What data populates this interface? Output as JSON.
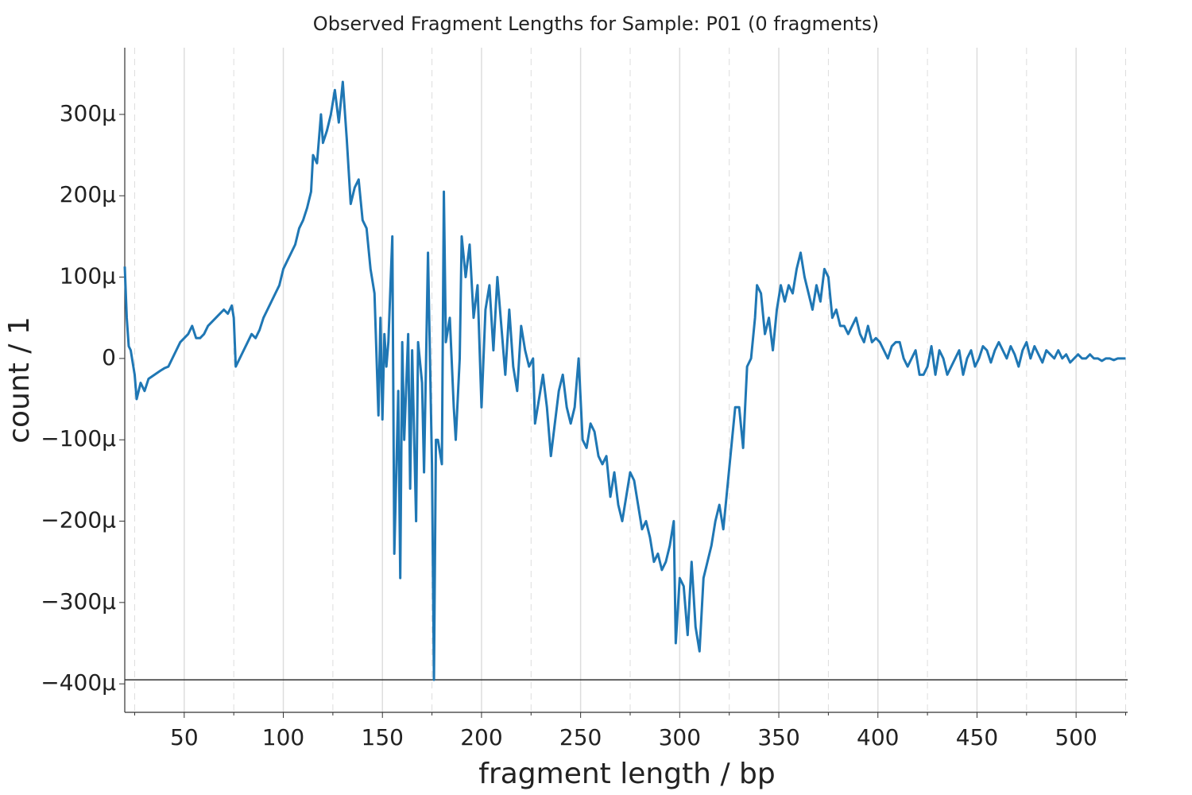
{
  "chart_data": {
    "type": "line",
    "title": "Observed Fragment Lengths for Sample: P01 (0 fragments)",
    "xlabel": "fragment length / bp",
    "ylabel": "count / 1",
    "xlim": [
      20,
      526
    ],
    "ylim": [
      -0.000435,
      0.000382
    ],
    "xticks": [
      50,
      100,
      150,
      200,
      250,
      300,
      350,
      400,
      450,
      500
    ],
    "xminorticks": [
      25,
      75,
      125,
      175,
      225,
      275,
      325,
      375,
      425,
      475,
      525
    ],
    "yticks": [
      {
        "value": -0.0004,
        "label": "−400μ"
      },
      {
        "value": -0.0003,
        "label": "−300μ"
      },
      {
        "value": -0.0002,
        "label": "−200μ"
      },
      {
        "value": -0.0001,
        "label": "−100μ"
      },
      0,
      {
        "value": 0.0001,
        "label": "100μ"
      },
      {
        "value": 0.0002,
        "label": "200μ"
      },
      {
        "value": 0.0003,
        "label": "300μ"
      }
    ],
    "hline": -0.000395,
    "grid": true,
    "series": [
      {
        "color": "#1f77b4",
        "x": [
          20,
          21,
          22,
          23,
          25,
          26,
          28,
          30,
          32,
          35,
          38,
          40,
          42,
          44,
          46,
          48,
          50,
          52,
          54,
          56,
          58,
          60,
          62,
          64,
          66,
          68,
          70,
          72,
          74,
          75,
          76,
          78,
          80,
          82,
          84,
          86,
          88,
          90,
          92,
          94,
          96,
          98,
          100,
          102,
          104,
          106,
          108,
          110,
          112,
          114,
          115,
          117,
          119,
          120,
          122,
          124,
          126,
          128,
          130,
          132,
          134,
          136,
          138,
          140,
          142,
          144,
          146,
          148,
          149,
          150,
          151,
          152,
          153,
          155,
          156,
          158,
          159,
          160,
          161,
          163,
          164,
          165,
          167,
          168,
          170,
          171,
          173,
          175,
          176,
          177,
          178,
          180,
          181,
          182,
          184,
          186,
          187,
          189,
          190,
          192,
          194,
          196,
          198,
          200,
          202,
          204,
          206,
          208,
          210,
          212,
          214,
          216,
          218,
          220,
          222,
          224,
          226,
          227,
          229,
          231,
          233,
          235,
          237,
          239,
          241,
          243,
          245,
          247,
          249,
          251,
          253,
          255,
          257,
          259,
          261,
          263,
          265,
          267,
          269,
          271,
          273,
          275,
          277,
          279,
          281,
          283,
          285,
          287,
          289,
          291,
          293,
          295,
          297,
          298,
          300,
          302,
          304,
          306,
          308,
          310,
          312,
          314,
          316,
          318,
          320,
          322,
          324,
          326,
          328,
          330,
          332,
          334,
          336,
          338,
          339,
          341,
          343,
          345,
          347,
          349,
          351,
          353,
          355,
          357,
          359,
          361,
          363,
          365,
          367,
          369,
          371,
          373,
          375,
          377,
          379,
          381,
          383,
          385,
          387,
          389,
          391,
          393,
          395,
          397,
          399,
          401,
          403,
          405,
          407,
          409,
          411,
          413,
          415,
          417,
          419,
          421,
          423,
          425,
          427,
          429,
          431,
          433,
          435,
          437,
          439,
          441,
          443,
          445,
          447,
          449,
          451,
          453,
          455,
          457,
          459,
          461,
          463,
          465,
          467,
          469,
          471,
          473,
          475,
          477,
          479,
          481,
          483,
          485,
          487,
          489,
          491,
          493,
          495,
          497,
          499,
          501,
          503,
          505,
          507,
          509,
          511,
          513,
          515,
          517,
          519,
          521,
          523,
          525
        ],
        "values": [
          0.000113,
          5e-05,
          1.5e-05,
          1e-05,
          -2e-05,
          -5e-05,
          -3e-05,
          -4e-05,
          -2.5e-05,
          -2e-05,
          -1.5e-05,
          -1.2e-05,
          -1e-05,
          0,
          1e-05,
          2e-05,
          2.5e-05,
          3e-05,
          4e-05,
          2.5e-05,
          2.5e-05,
          3e-05,
          4e-05,
          4.5e-05,
          5e-05,
          5.5e-05,
          6e-05,
          5.5e-05,
          6.5e-05,
          5e-05,
          -1e-05,
          0,
          1e-05,
          2e-05,
          3e-05,
          2.5e-05,
          3.5e-05,
          5e-05,
          6e-05,
          7e-05,
          8e-05,
          9e-05,
          0.00011,
          0.00012,
          0.00013,
          0.00014,
          0.00016,
          0.00017,
          0.000185,
          0.000205,
          0.00025,
          0.00024,
          0.0003,
          0.000265,
          0.00028,
          0.0003,
          0.00033,
          0.00029,
          0.00034,
          0.00027,
          0.00019,
          0.00021,
          0.00022,
          0.00017,
          0.00016,
          0.00011,
          8e-05,
          -7e-05,
          5e-05,
          -7.5e-05,
          3e-05,
          -1e-05,
          2e-05,
          0.00015,
          -0.00024,
          -4e-05,
          -0.00027,
          2e-05,
          -0.0001,
          3e-05,
          -0.00016,
          1e-05,
          -0.0002,
          2e-05,
          -3e-05,
          -0.00014,
          0.00013,
          -0.00013,
          -0.000395,
          -0.0001,
          -0.0001,
          -0.00013,
          0.000205,
          2e-05,
          5e-05,
          -6e-05,
          -0.0001,
          0,
          0.00015,
          0.0001,
          0.00014,
          5e-05,
          9e-05,
          -6e-05,
          6e-05,
          9e-05,
          1e-05,
          0.0001,
          4e-05,
          -2e-05,
          6e-05,
          -1e-05,
          -4e-05,
          4e-05,
          1e-05,
          -1e-05,
          0,
          -8e-05,
          -5e-05,
          -2e-05,
          -6e-05,
          -0.00012,
          -8e-05,
          -4e-05,
          -2e-05,
          -6e-05,
          -8e-05,
          -6e-05,
          0,
          -0.0001,
          -0.00011,
          -8e-05,
          -9e-05,
          -0.00012,
          -0.00013,
          -0.00012,
          -0.00017,
          -0.00014,
          -0.00018,
          -0.0002,
          -0.00017,
          -0.00014,
          -0.00015,
          -0.00018,
          -0.00021,
          -0.0002,
          -0.00022,
          -0.00025,
          -0.00024,
          -0.00026,
          -0.00025,
          -0.00023,
          -0.0002,
          -0.00035,
          -0.00027,
          -0.00028,
          -0.00034,
          -0.00025,
          -0.00033,
          -0.00036,
          -0.00027,
          -0.00025,
          -0.00023,
          -0.0002,
          -0.00018,
          -0.00021,
          -0.00016,
          -0.00011,
          -6e-05,
          -6e-05,
          -0.00011,
          -1e-05,
          0,
          5e-05,
          9e-05,
          8e-05,
          3e-05,
          5e-05,
          1e-05,
          6e-05,
          9e-05,
          7e-05,
          9e-05,
          8e-05,
          0.00011,
          0.00013,
          0.0001,
          8e-05,
          6e-05,
          9e-05,
          7e-05,
          0.00011,
          0.0001,
          5e-05,
          6e-05,
          4e-05,
          4e-05,
          3e-05,
          4e-05,
          5e-05,
          3e-05,
          2e-05,
          4e-05,
          2e-05,
          2.5e-05,
          2e-05,
          1e-05,
          0,
          1.5e-05,
          2e-05,
          2e-05,
          0,
          -1e-05,
          0,
          1e-05,
          -2e-05,
          -2e-05,
          -1e-05,
          1.5e-05,
          -2e-05,
          1e-05,
          0,
          -2e-05,
          -1e-05,
          0,
          1e-05,
          -2e-05,
          0,
          1e-05,
          -1e-05,
          0,
          1.5e-05,
          1e-05,
          -5e-06,
          1e-05,
          2e-05,
          1e-05,
          0,
          1.5e-05,
          5e-06,
          -1e-05,
          1e-05,
          2e-05,
          0,
          1.5e-05,
          5e-06,
          -5e-06,
          1e-05,
          5e-06,
          0,
          1e-05,
          0,
          5e-06,
          -5e-06,
          0,
          5e-06,
          0,
          0,
          5e-06,
          0,
          0,
          -3e-06,
          0,
          0,
          -2e-06,
          0,
          0,
          0
        ]
      }
    ]
  }
}
